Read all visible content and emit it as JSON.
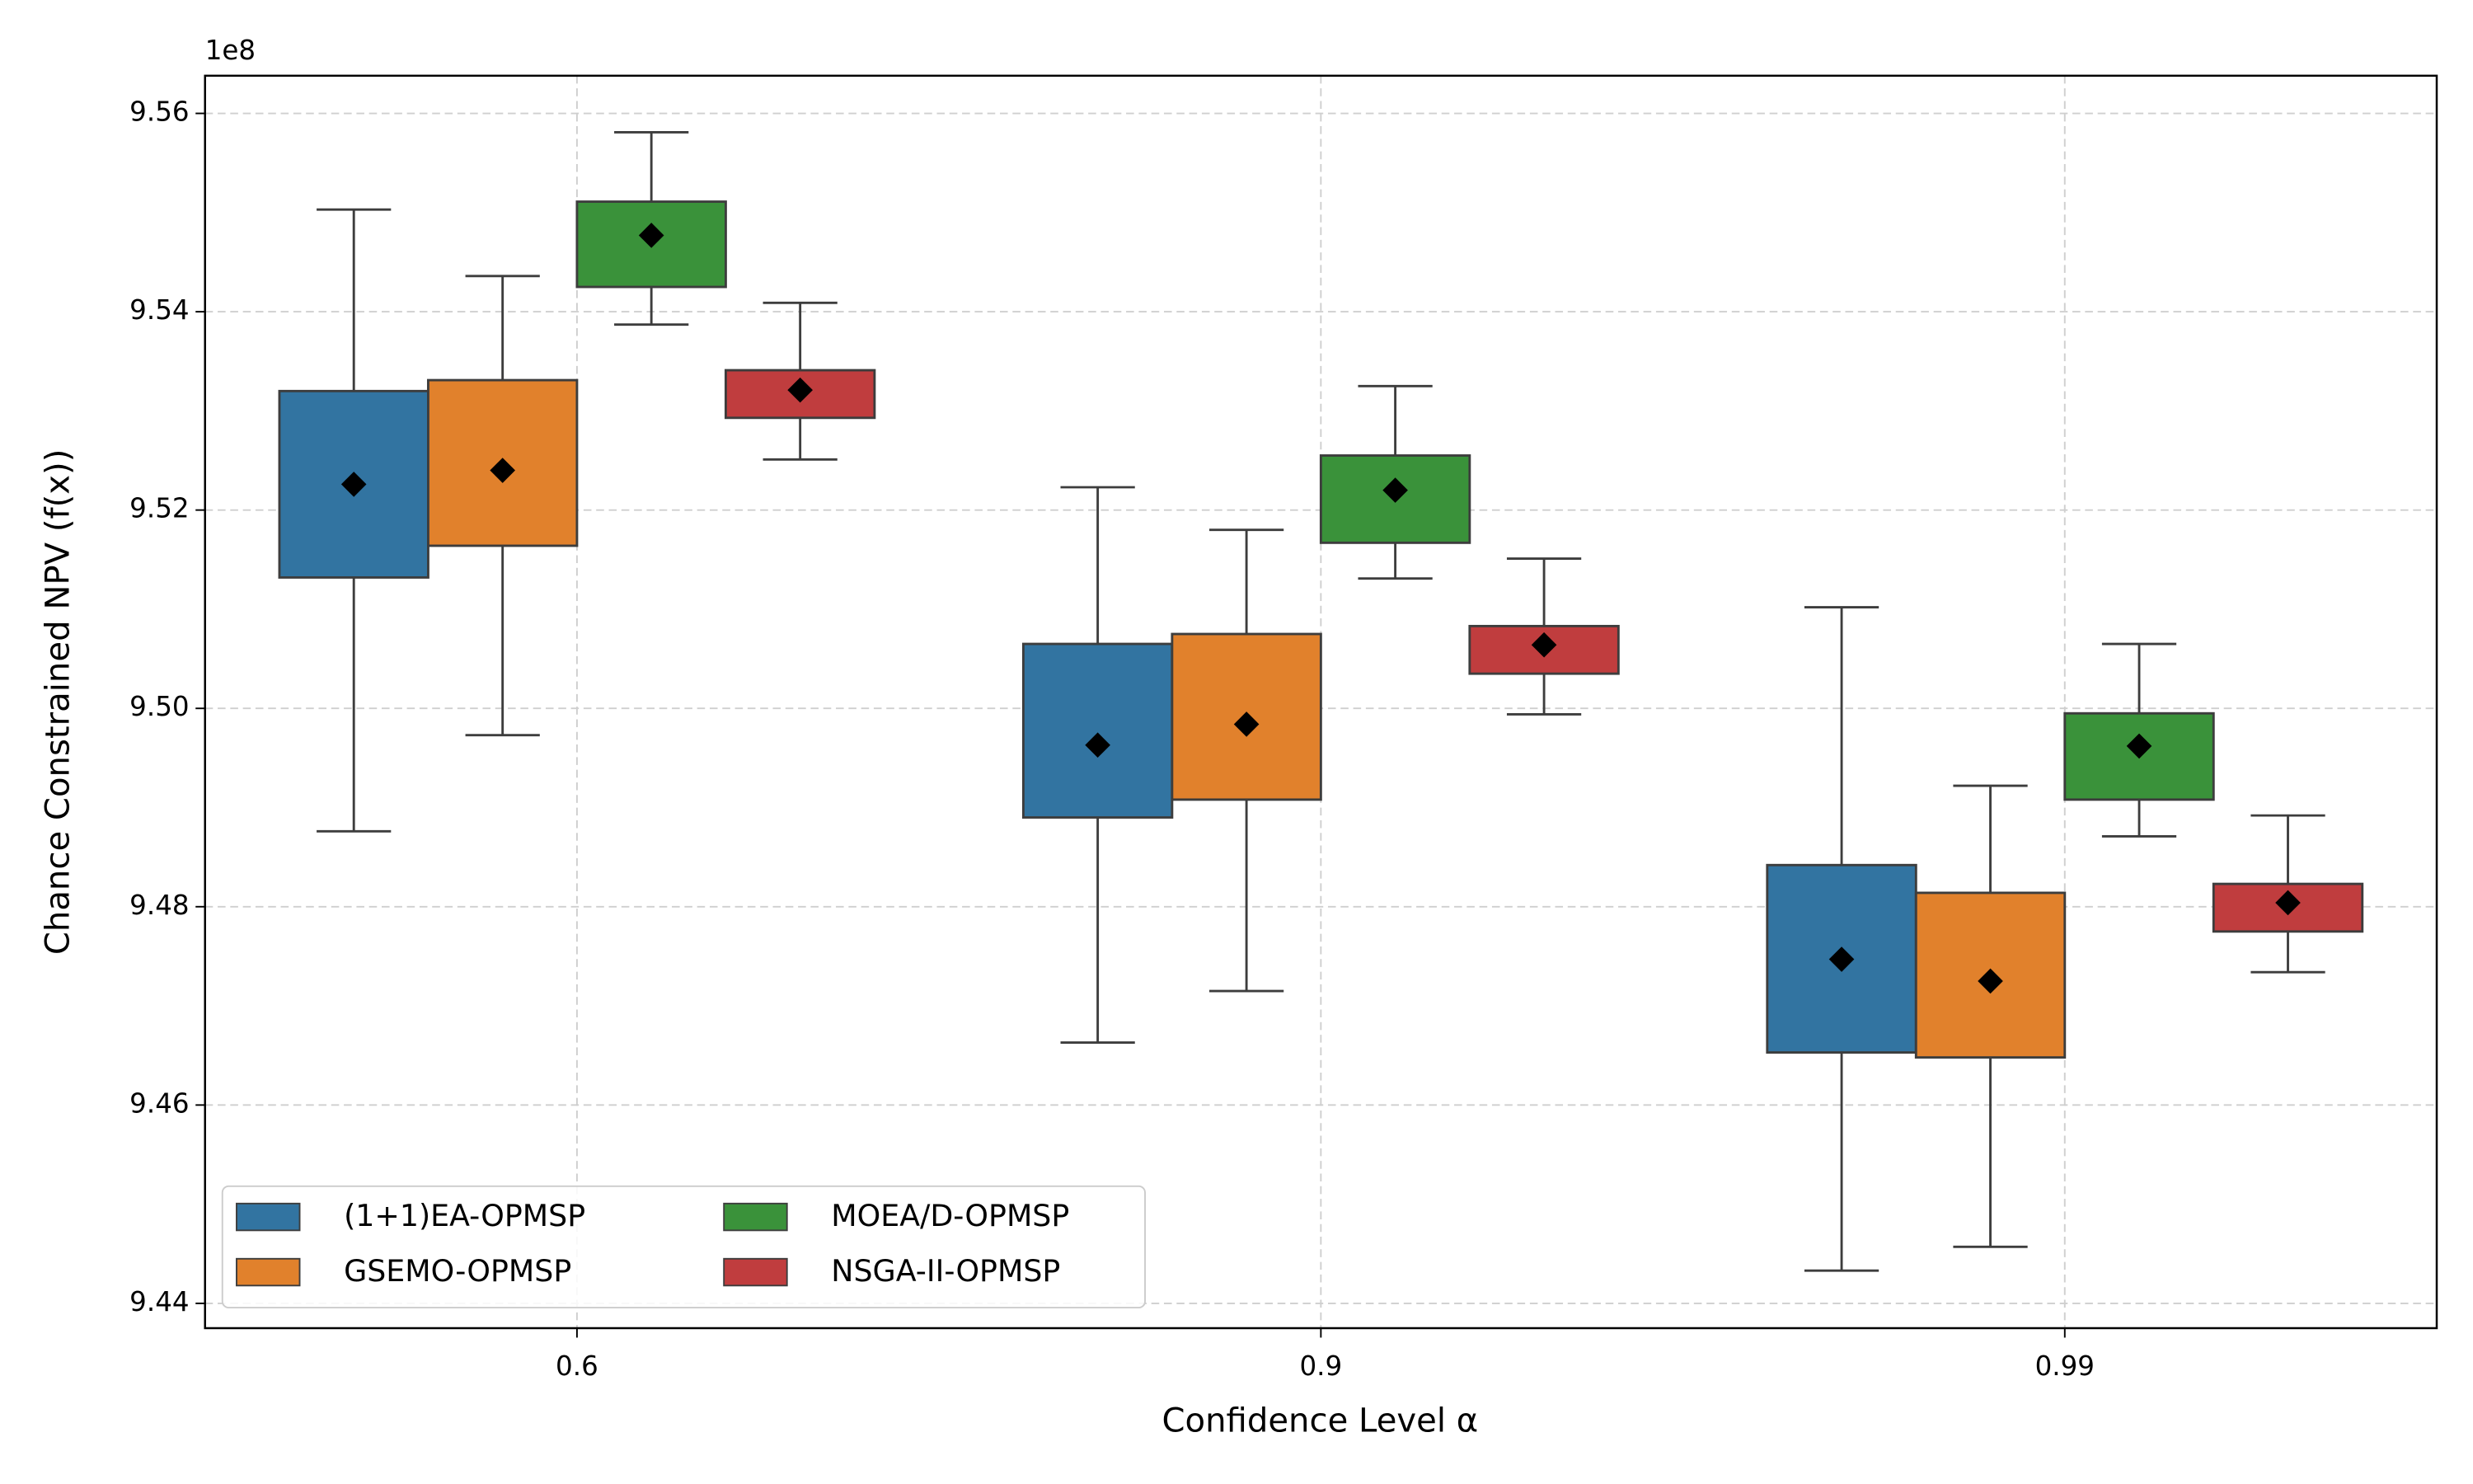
{
  "chart_data": {
    "type": "box",
    "ylabel": "Chance Constrained NPV (f(x))",
    "xlabel": "Confidence Level α",
    "offset_text": "1e8",
    "categories": [
      "0.6",
      "0.9",
      "0.99"
    ],
    "ylim": [
      9.4375,
      9.5638
    ],
    "yticks": [
      9.44,
      9.46,
      9.48,
      {
        "value": 9.5,
        "label": "9.50"
      },
      9.52,
      9.54,
      9.56
    ],
    "grid": true,
    "legend": "lower left",
    "series": [
      {
        "name": "(1+1)EA-OPMSP",
        "color": "#3274a1",
        "whislo": [
          9.4876,
          9.4663,
          9.4433
        ],
        "q1": [
          9.5132,
          9.489,
          9.4653
        ],
        "q3": [
          9.532,
          9.5065,
          9.4842
        ],
        "whishi": [
          9.5503,
          9.5223,
          9.5102
        ],
        "mean": [
          9.5226,
          9.4963,
          9.4747
        ]
      },
      {
        "name": "GSEMO-OPMSP",
        "color": "#e1812c",
        "whislo": [
          9.4973,
          9.4715,
          9.4457
        ],
        "q1": [
          9.5164,
          9.4908,
          9.4648
        ],
        "q3": [
          9.5331,
          9.5075,
          9.4814
        ],
        "whishi": [
          9.5436,
          9.518,
          9.4922
        ],
        "mean": [
          9.524,
          9.4984,
          9.4725
        ]
      },
      {
        "name": "MOEA/D-OPMSP",
        "color": "#3a923a",
        "whislo": [
          9.5387,
          9.5131,
          9.4871
        ],
        "q1": [
          9.5425,
          9.5167,
          9.4908
        ],
        "q3": [
          9.5511,
          9.5255,
          9.4995
        ],
        "whishi": [
          9.5581,
          9.5325,
          9.5065
        ],
        "mean": [
          9.5477,
          9.522,
          9.4962
        ]
      },
      {
        "name": "NSGA-II-OPMSP",
        "color": "#c03d3e",
        "whislo": [
          9.5251,
          9.4994,
          9.4734
        ],
        "q1": [
          9.5293,
          9.5035,
          9.4775
        ],
        "q3": [
          9.5341,
          9.5083,
          9.4823
        ],
        "whishi": [
          9.5409,
          9.5151,
          9.4892
        ],
        "mean": [
          9.5321,
          9.5064,
          9.4804
        ]
      }
    ]
  }
}
